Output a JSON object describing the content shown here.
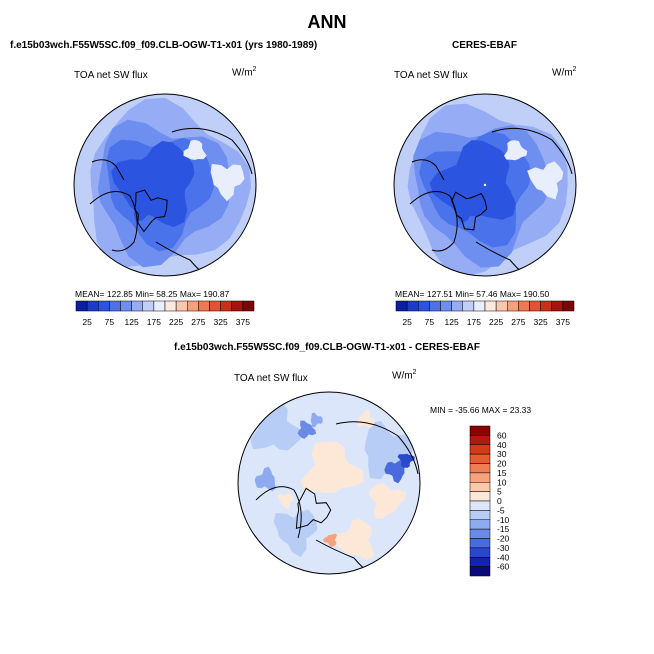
{
  "page_title": "ANN",
  "panels": [
    {
      "case_title": "f.e15b03wch.F55W5SC.f09_f09.CLB-OGW-T1-x01 (yrs 1980-1989)",
      "variable": "TOA net SW flux",
      "units_base": "W/m",
      "units_exp": "2",
      "stats": "MEAN= 122.85   Min= 58.25   Max= 190.87"
    },
    {
      "case_title": "CERES-EBAF",
      "variable": "TOA net SW flux",
      "units_base": "W/m",
      "units_exp": "2",
      "stats": "MEAN= 127.51   Min= 57.46   Max= 190.50"
    },
    {
      "case_title": "f.e15b03wch.F55W5SC.f09_f09.CLB-OGW-T1-x01 - CERES-EBAF",
      "variable": "TOA net SW flux",
      "units_base": "W/m",
      "units_exp": "2",
      "stats": "MIN = -35.66  MAX =  23.33"
    }
  ],
  "colorbar_abs": {
    "labels": [
      "25",
      "75",
      "125",
      "175",
      "225",
      "275",
      "325",
      "375"
    ],
    "colors": [
      "#0a1f9e",
      "#1a3cc7",
      "#2b55e0",
      "#4a72ea",
      "#6f8ff0",
      "#96acf4",
      "#bfcff8",
      "#e8eefc",
      "#fde8dc",
      "#f9c7ad",
      "#f4a17e",
      "#ee7a52",
      "#e2532f",
      "#c7301a",
      "#a0150c",
      "#7a0606"
    ]
  },
  "colorbar_diff": {
    "labels": [
      "60",
      "40",
      "30",
      "20",
      "15",
      "10",
      "5",
      "0",
      "-5",
      "-10",
      "-15",
      "-20",
      "-30",
      "-40",
      "-60"
    ],
    "colors": [
      "#8b0000",
      "#b01810",
      "#d23a18",
      "#e85a30",
      "#f07e55",
      "#f6a27c",
      "#fbc8a8",
      "#fde8d8",
      "#dbe6fb",
      "#b8cdf6",
      "#8eaaf0",
      "#6a8ae8",
      "#4a6be0",
      "#2a48cc",
      "#1424a8",
      "#0a0a7a"
    ]
  }
}
